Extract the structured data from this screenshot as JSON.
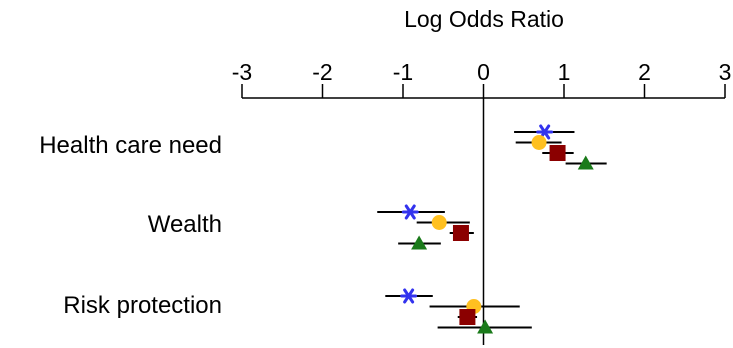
{
  "chart_data": {
    "type": "scatter",
    "xlabel": "Log Odds Ratio",
    "xlim": [
      -3,
      3
    ],
    "xticks": [
      -3,
      -2,
      -1,
      0,
      1,
      2,
      3
    ],
    "xtick_labels": [
      "-3",
      "-2",
      "-1",
      "0",
      "1",
      "2",
      "3"
    ],
    "axis_position": "top",
    "grid": false,
    "categories": [
      "Health care need",
      "Wealth",
      "Risk protection"
    ],
    "series": [
      {
        "marker": "asterisk",
        "color": "#3333ee",
        "points": [
          {
            "category": "Health care need",
            "estimate": 0.76,
            "low": 0.38,
            "high": 1.13
          },
          {
            "category": "Wealth",
            "estimate": -0.91,
            "low": -1.32,
            "high": -0.48
          },
          {
            "category": "Risk protection",
            "estimate": -0.93,
            "low": -1.22,
            "high": -0.63
          }
        ]
      },
      {
        "marker": "circle",
        "color": "#ffc020",
        "points": [
          {
            "category": "Health care need",
            "estimate": 0.69,
            "low": 0.4,
            "high": 0.97
          },
          {
            "category": "Wealth",
            "estimate": -0.55,
            "low": -0.83,
            "high": -0.17
          },
          {
            "category": "Risk protection",
            "estimate": -0.12,
            "low": -0.67,
            "high": 0.45
          }
        ]
      },
      {
        "marker": "square",
        "color": "#8b0000",
        "points": [
          {
            "category": "Health care need",
            "estimate": 0.92,
            "low": 0.73,
            "high": 1.12
          },
          {
            "category": "Wealth",
            "estimate": -0.28,
            "low": -0.42,
            "high": -0.12
          },
          {
            "category": "Risk protection",
            "estimate": -0.2,
            "low": -0.32,
            "high": -0.08
          }
        ]
      },
      {
        "marker": "triangle",
        "color": "#1a7a1a",
        "points": [
          {
            "category": "Health care need",
            "estimate": 1.27,
            "low": 1.02,
            "high": 1.53
          },
          {
            "category": "Wealth",
            "estimate": -0.8,
            "low": -1.06,
            "high": -0.53
          },
          {
            "category": "Risk protection",
            "estimate": 0.02,
            "low": -0.57,
            "high": 0.6
          }
        ]
      }
    ]
  }
}
